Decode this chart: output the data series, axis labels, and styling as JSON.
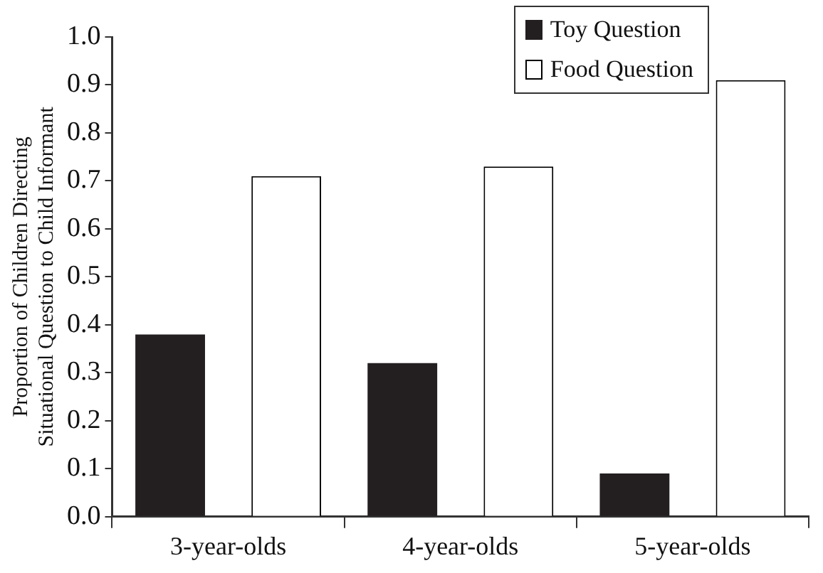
{
  "chart_data": {
    "type": "bar",
    "ylabel": "Proportion of Children Directing Situational Question to Child Informant",
    "categories": [
      "3-year-olds",
      "4-year-olds",
      "5-year-olds"
    ],
    "series": [
      {
        "name": "Toy Question",
        "color": "#231f20",
        "values": [
          0.38,
          0.32,
          0.09
        ]
      },
      {
        "name": "Food Question",
        "color": "#ffffff",
        "values": [
          0.71,
          0.73,
          0.91
        ]
      }
    ],
    "ylim": [
      0,
      1
    ],
    "yticks": [
      {
        "value": 0,
        "label": "0.0"
      },
      0.1,
      0.2,
      0.3,
      0.4,
      0.5,
      0.6,
      0.7,
      0.8,
      0.9,
      {
        "value": 1,
        "label": "1.0"
      }
    ],
    "grid": false,
    "legend": "top right"
  }
}
